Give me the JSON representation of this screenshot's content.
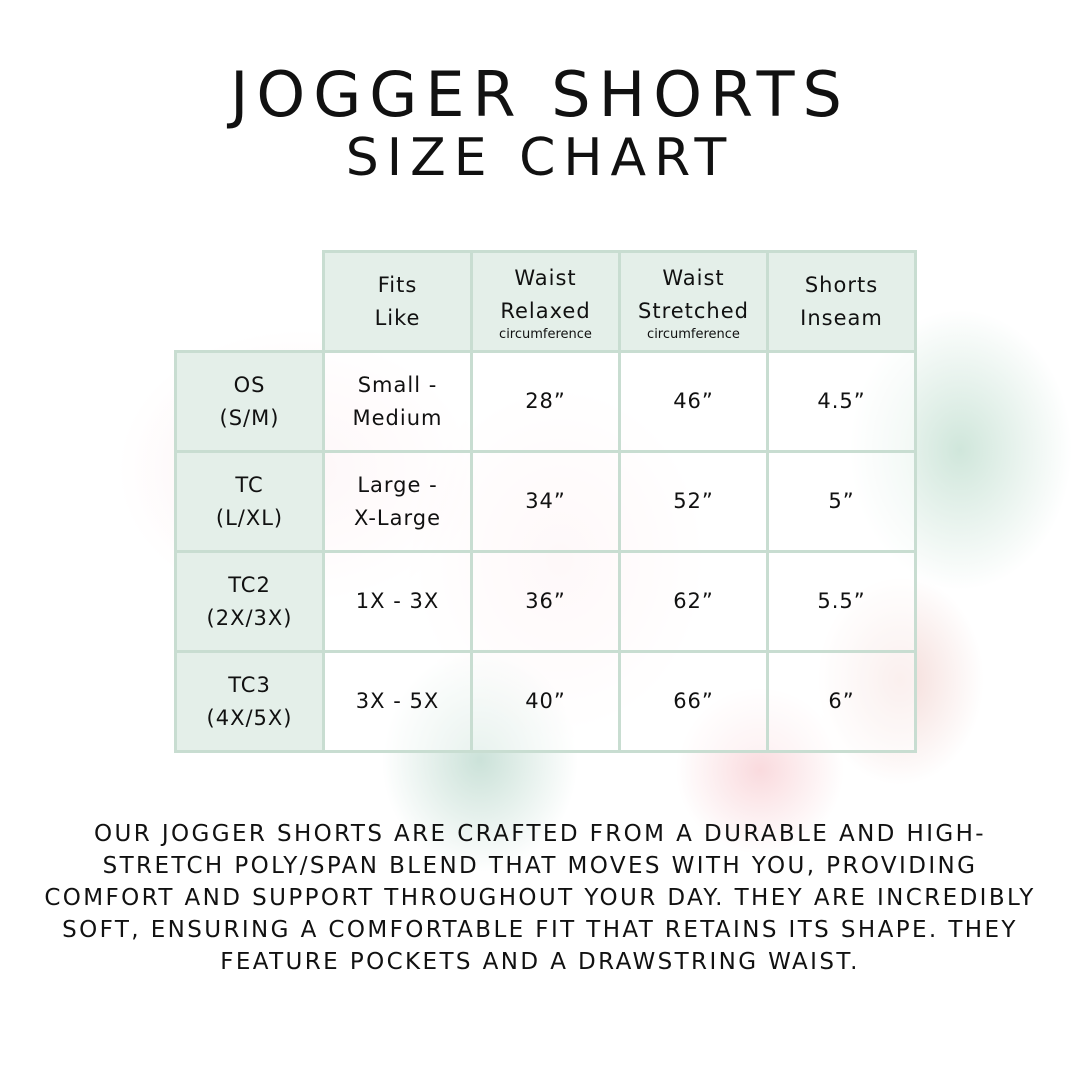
{
  "title": "JOGGER SHORTS",
  "subtitle": "SIZE CHART",
  "table": {
    "headers": [
      {
        "label": "Fits\nLike",
        "sub": ""
      },
      {
        "label": "Waist\nRelaxed",
        "sub": "circumference"
      },
      {
        "label": "Waist\nStretched",
        "sub": "circumference"
      },
      {
        "label": "Shorts\nInseam",
        "sub": ""
      }
    ],
    "rows": [
      {
        "size": "OS\n(S/M)",
        "fits": "Small -\nMedium",
        "relaxed": "28”",
        "stretched": "46”",
        "inseam": "4.5”"
      },
      {
        "size": "TC\n(L/XL)",
        "fits": "Large -\nX-Large",
        "relaxed": "34”",
        "stretched": "52”",
        "inseam": "5”"
      },
      {
        "size": "TC2\n(2X/3X)",
        "fits": "1X - 3X",
        "relaxed": "36”",
        "stretched": "62”",
        "inseam": "5.5”"
      },
      {
        "size": "TC3\n(4X/5X)",
        "fits": "3X - 5X",
        "relaxed": "40”",
        "stretched": "66”",
        "inseam": "6”"
      }
    ]
  },
  "description": "Our jogger shorts are crafted from a durable and high-stretch poly/span blend that moves with you, providing comfort and support throughout your day. They are incredibly soft, ensuring a comfortable fit that retains its shape. They feature pockets and a drawstring waist.",
  "colors": {
    "header_fill": "#e4efe9",
    "border": "#c8ddd1"
  }
}
